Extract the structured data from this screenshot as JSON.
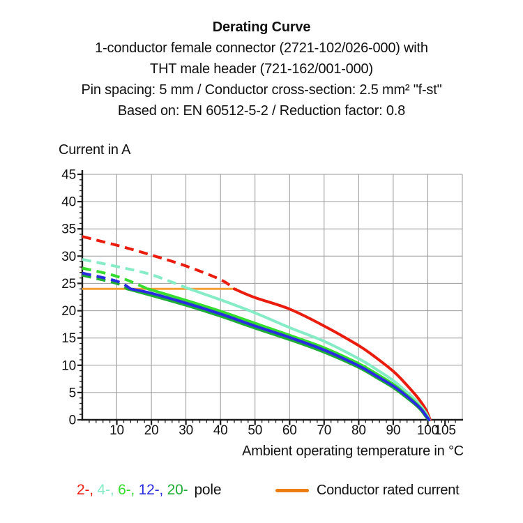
{
  "title_block": {
    "line1": "Derating Curve",
    "line2": "1-conductor female connector (2721-102/026-000) with",
    "line3": "THT male header (721-162/001-000)",
    "line4": "Pin spacing: 5 mm / Conductor cross-section: 2.5 mm² \"f-st\"",
    "line5": "Based on: EN 60512-5-2 / Reduction factor: 0.8"
  },
  "chart_data": {
    "type": "line",
    "title": "Derating Curve",
    "xlabel": "Ambient operating temperature in °C",
    "ylabel": "Current in A",
    "xlim": [
      0,
      110
    ],
    "ylim": [
      0,
      45
    ],
    "xticks": [
      10,
      20,
      30,
      40,
      50,
      60,
      70,
      80,
      90,
      100,
      105
    ],
    "xgrid": [
      10,
      20,
      30,
      40,
      50,
      60,
      70,
      80,
      90,
      100
    ],
    "yticks": [
      0,
      5,
      10,
      15,
      20,
      25,
      30,
      35,
      40,
      45
    ],
    "grid": "on",
    "grid_color": "#9a9a9a",
    "axis_color": "#1d1d1d",
    "rated_current": {
      "label": "Conductor rated current",
      "value_a": 24,
      "line_color": "#f6a038",
      "x_start": 0,
      "x_end": 44.8,
      "note": "curves are dashed above this line, solid below"
    },
    "series": [
      {
        "name": "2-pole",
        "color": "#ea1c0d",
        "dash_until": 44,
        "points": [
          [
            0,
            33.6
          ],
          [
            10,
            32.0
          ],
          [
            20,
            30.2
          ],
          [
            30,
            28.2
          ],
          [
            40,
            25.7
          ],
          [
            44,
            24.0
          ],
          [
            50,
            22.4
          ],
          [
            60,
            20.3
          ],
          [
            70,
            17.2
          ],
          [
            80,
            13.6
          ],
          [
            85,
            11.4
          ],
          [
            90,
            8.9
          ],
          [
            93,
            7.0
          ],
          [
            96,
            4.9
          ],
          [
            98,
            3.3
          ],
          [
            99.5,
            1.8
          ],
          [
            100.7,
            0
          ]
        ]
      },
      {
        "name": "4-pole",
        "color": "#86ecc6",
        "dash_until": 31,
        "points": [
          [
            0,
            29.4
          ],
          [
            10,
            28.1
          ],
          [
            20,
            26.6
          ],
          [
            31,
            24.0
          ],
          [
            40,
            22.0
          ],
          [
            50,
            19.6
          ],
          [
            60,
            16.9
          ],
          [
            70,
            14.4
          ],
          [
            80,
            11.2
          ],
          [
            85,
            9.3
          ],
          [
            90,
            7.2
          ],
          [
            93,
            5.6
          ],
          [
            96,
            3.9
          ],
          [
            98,
            2.5
          ],
          [
            99.5,
            1.2
          ],
          [
            100.5,
            0
          ]
        ]
      },
      {
        "name": "6-pole",
        "color": "#35dd2e",
        "dash_until": 19,
        "points": [
          [
            0,
            27.8
          ],
          [
            10,
            26.3
          ],
          [
            19,
            24.0
          ],
          [
            30,
            21.9
          ],
          [
            40,
            19.9
          ],
          [
            50,
            17.7
          ],
          [
            60,
            15.5
          ],
          [
            70,
            13.2
          ],
          [
            80,
            10.3
          ],
          [
            85,
            8.5
          ],
          [
            90,
            6.5
          ],
          [
            93,
            5.0
          ],
          [
            96,
            3.4
          ],
          [
            98,
            2.1
          ],
          [
            99.4,
            0.9
          ],
          [
            100.3,
            0
          ]
        ]
      },
      {
        "name": "20-pole",
        "color": "#1fae35",
        "dash_until": 13,
        "points": [
          [
            0,
            26.5
          ],
          [
            10,
            25.0
          ],
          [
            13,
            24.0
          ],
          [
            20,
            22.8
          ],
          [
            30,
            21.0
          ],
          [
            40,
            19.0
          ],
          [
            50,
            16.8
          ],
          [
            60,
            14.7
          ],
          [
            70,
            12.4
          ],
          [
            80,
            9.6
          ],
          [
            85,
            7.8
          ],
          [
            90,
            5.9
          ],
          [
            93,
            4.5
          ],
          [
            96,
            3.0
          ],
          [
            98,
            1.8
          ],
          [
            99.3,
            0.7
          ],
          [
            100.2,
            0
          ]
        ]
      },
      {
        "name": "12-pole",
        "color": "#2a2ae0",
        "dash_until": 14,
        "points": [
          [
            0,
            26.9
          ],
          [
            10,
            25.4
          ],
          [
            14,
            24.0
          ],
          [
            20,
            23.2
          ],
          [
            30,
            21.4
          ],
          [
            40,
            19.4
          ],
          [
            50,
            17.2
          ],
          [
            60,
            15.1
          ],
          [
            70,
            12.8
          ],
          [
            80,
            9.9
          ],
          [
            85,
            8.1
          ],
          [
            90,
            6.2
          ],
          [
            93,
            4.8
          ],
          [
            96,
            3.2
          ],
          [
            98,
            2.0
          ],
          [
            99.4,
            0.8
          ],
          [
            100.4,
            0
          ]
        ]
      }
    ]
  },
  "legend": {
    "poles": [
      {
        "label": "2-",
        "color": "#ea1c0d"
      },
      {
        "label": "4-",
        "color": "#86ecc6"
      },
      {
        "label": "6-",
        "color": "#35dd2e"
      },
      {
        "label": "12-",
        "color": "#2a2ae0"
      },
      {
        "label": "20-",
        "color": "#1fae35"
      }
    ],
    "separator": ", ",
    "poles_suffix": "pole",
    "rated": {
      "label": "Conductor rated current",
      "color": "#ee7d11"
    }
  }
}
